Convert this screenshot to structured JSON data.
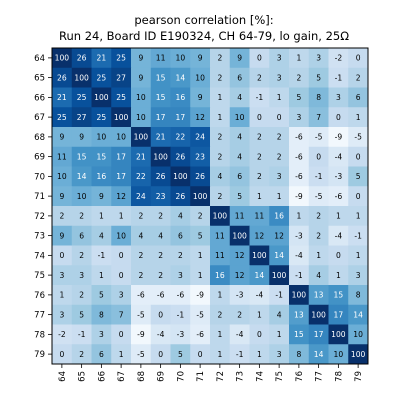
{
  "chart_data": {
    "type": "heatmap",
    "title": "pearson correlation [%]:",
    "subtitle": "Run 24, Board ID E190324, CH 64-79, lo gain, 25Ω",
    "xlabel": "",
    "ylabel": "",
    "x_categories": [
      "64",
      "65",
      "66",
      "67",
      "68",
      "69",
      "70",
      "71",
      "72",
      "73",
      "74",
      "75",
      "76",
      "77",
      "78",
      "79"
    ],
    "y_categories": [
      "64",
      "65",
      "66",
      "67",
      "68",
      "69",
      "70",
      "71",
      "72",
      "73",
      "74",
      "75",
      "76",
      "77",
      "78",
      "79"
    ],
    "values": [
      [
        100,
        26,
        21,
        25,
        9,
        11,
        10,
        9,
        2,
        9,
        0,
        3,
        1,
        3,
        -2,
        0
      ],
      [
        26,
        100,
        25,
        27,
        9,
        15,
        14,
        10,
        2,
        6,
        2,
        3,
        2,
        5,
        -1,
        2
      ],
      [
        21,
        25,
        100,
        25,
        10,
        15,
        16,
        9,
        1,
        4,
        -1,
        1,
        5,
        8,
        3,
        6
      ],
      [
        25,
        27,
        25,
        100,
        10,
        17,
        17,
        12,
        1,
        10,
        0,
        0,
        3,
        7,
        0,
        1
      ],
      [
        9,
        9,
        10,
        10,
        100,
        21,
        22,
        24,
        2,
        4,
        2,
        2,
        -6,
        -5,
        -9,
        -5
      ],
      [
        11,
        15,
        15,
        17,
        21,
        100,
        26,
        23,
        2,
        4,
        2,
        2,
        -6,
        0,
        -4,
        0
      ],
      [
        10,
        14,
        16,
        17,
        22,
        26,
        100,
        26,
        4,
        6,
        2,
        3,
        -6,
        -1,
        -3,
        5
      ],
      [
        9,
        10,
        9,
        12,
        24,
        23,
        26,
        100,
        2,
        5,
        1,
        1,
        -9,
        -5,
        -6,
        0
      ],
      [
        2,
        2,
        1,
        1,
        2,
        2,
        4,
        2,
        100,
        11,
        11,
        16,
        1,
        2,
        1,
        1
      ],
      [
        9,
        6,
        4,
        10,
        4,
        4,
        6,
        5,
        11,
        100,
        12,
        12,
        -3,
        2,
        -4,
        -1
      ],
      [
        0,
        2,
        -1,
        0,
        2,
        2,
        2,
        1,
        11,
        12,
        100,
        14,
        -4,
        1,
        0,
        1
      ],
      [
        3,
        3,
        1,
        0,
        2,
        2,
        3,
        1,
        16,
        12,
        14,
        100,
        -1,
        4,
        1,
        3
      ],
      [
        1,
        2,
        5,
        3,
        -6,
        -6,
        -6,
        -9,
        1,
        -3,
        -4,
        -1,
        100,
        13,
        15,
        8
      ],
      [
        3,
        5,
        8,
        7,
        -5,
        0,
        -1,
        -5,
        2,
        2,
        1,
        4,
        13,
        100,
        17,
        14
      ],
      [
        -2,
        -1,
        3,
        0,
        -9,
        -4,
        -3,
        -6,
        1,
        -4,
        0,
        1,
        15,
        17,
        100,
        10
      ],
      [
        0,
        2,
        6,
        1,
        -5,
        0,
        5,
        0,
        1,
        -1,
        1,
        3,
        8,
        14,
        10,
        100
      ]
    ],
    "colormap": "blue sequential",
    "color_range": [
      -10,
      30
    ],
    "colors": {
      "low": "#f7fbff",
      "high": "#08306b",
      "text_dark": "#000000",
      "text_light": "#ffffff"
    },
    "grid": false,
    "legend": "none"
  }
}
